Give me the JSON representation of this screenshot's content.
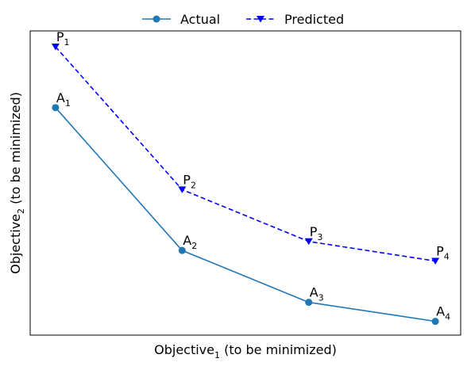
{
  "chart_data": {
    "type": "line",
    "title": "",
    "xlabel": {
      "base": "Objective",
      "sub": "1",
      "suffix": " (to be minimized)"
    },
    "ylabel": {
      "base": "Objective",
      "sub": "2",
      "suffix": " (to be minimized)"
    },
    "xlim": [
      0.8,
      4.2
    ],
    "ylim": [
      0.0,
      5.75
    ],
    "x_ticks_visible": false,
    "y_ticks_visible": false,
    "grid": false,
    "legend_position": "top-center",
    "series": [
      {
        "name": "Actual",
        "color": "#1f77b4",
        "line_style": "solid",
        "marker": "circle",
        "points": [
          {
            "x": 1,
            "y": 4.3,
            "label": "A",
            "sub": "1"
          },
          {
            "x": 2,
            "y": 1.6,
            "label": "A",
            "sub": "2"
          },
          {
            "x": 3,
            "y": 0.62,
            "label": "A",
            "sub": "3"
          },
          {
            "x": 4,
            "y": 0.26,
            "label": "A",
            "sub": "4"
          }
        ]
      },
      {
        "name": "Predicted",
        "color": "#0000ff",
        "line_style": "dashed",
        "marker": "triangle-down",
        "points": [
          {
            "x": 1,
            "y": 5.45,
            "label": "P",
            "sub": "1"
          },
          {
            "x": 2,
            "y": 2.75,
            "label": "P",
            "sub": "2"
          },
          {
            "x": 3,
            "y": 1.77,
            "label": "P",
            "sub": "3"
          },
          {
            "x": 4,
            "y": 1.4,
            "label": "P",
            "sub": "4"
          }
        ]
      }
    ]
  }
}
